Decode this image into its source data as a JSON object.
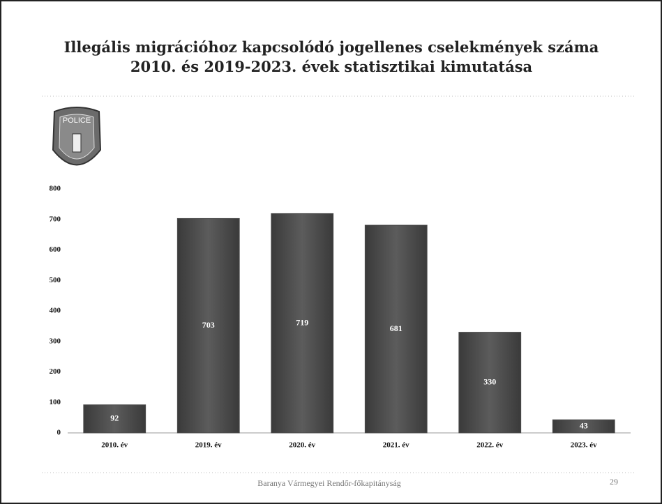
{
  "chart_data": {
    "type": "bar",
    "title": [
      "Illegális migrációhoz kapcsolódó jogellenes cselekmények száma",
      "2010. és 2019-2023. évek statisztikai kimutatása"
    ],
    "categories": [
      "2010. év",
      "2019. év",
      "2020. év",
      "2021. év",
      "2022. év",
      "2023. év"
    ],
    "values": [
      92,
      703,
      719,
      681,
      330,
      43
    ],
    "color": "#4a4a4a",
    "ylim": [
      0,
      800
    ],
    "yticks": [
      0,
      100,
      200,
      300,
      400,
      500,
      600,
      700,
      800
    ],
    "grid": false
  },
  "badge": "POLICE",
  "footer": {
    "text": "Baranya Vármegyei Rendőr-főkapitányság",
    "page": "29"
  }
}
